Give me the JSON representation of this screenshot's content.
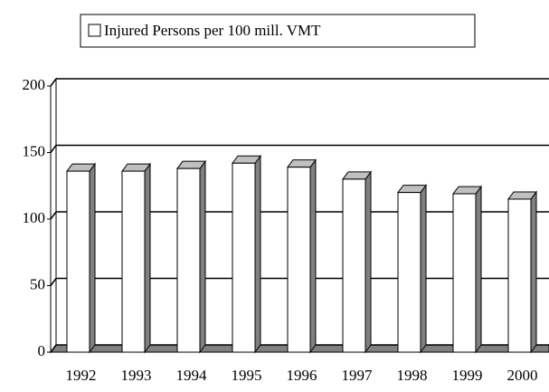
{
  "chart_data": {
    "type": "bar3d",
    "series": [
      {
        "name": "Injured Persons per 100 mill. VMT",
        "color": "#ffffff",
        "values": [
          136,
          136,
          138,
          142,
          139,
          130,
          120,
          119,
          115
        ]
      }
    ],
    "categories": [
      "1992",
      "1993",
      "1994",
      "1995",
      "1996",
      "1997",
      "1998",
      "1999",
      "2000"
    ],
    "ylim": [
      0,
      200
    ],
    "yticks": [
      0,
      50,
      100,
      150,
      200
    ],
    "grid": true,
    "legend": "top"
  }
}
